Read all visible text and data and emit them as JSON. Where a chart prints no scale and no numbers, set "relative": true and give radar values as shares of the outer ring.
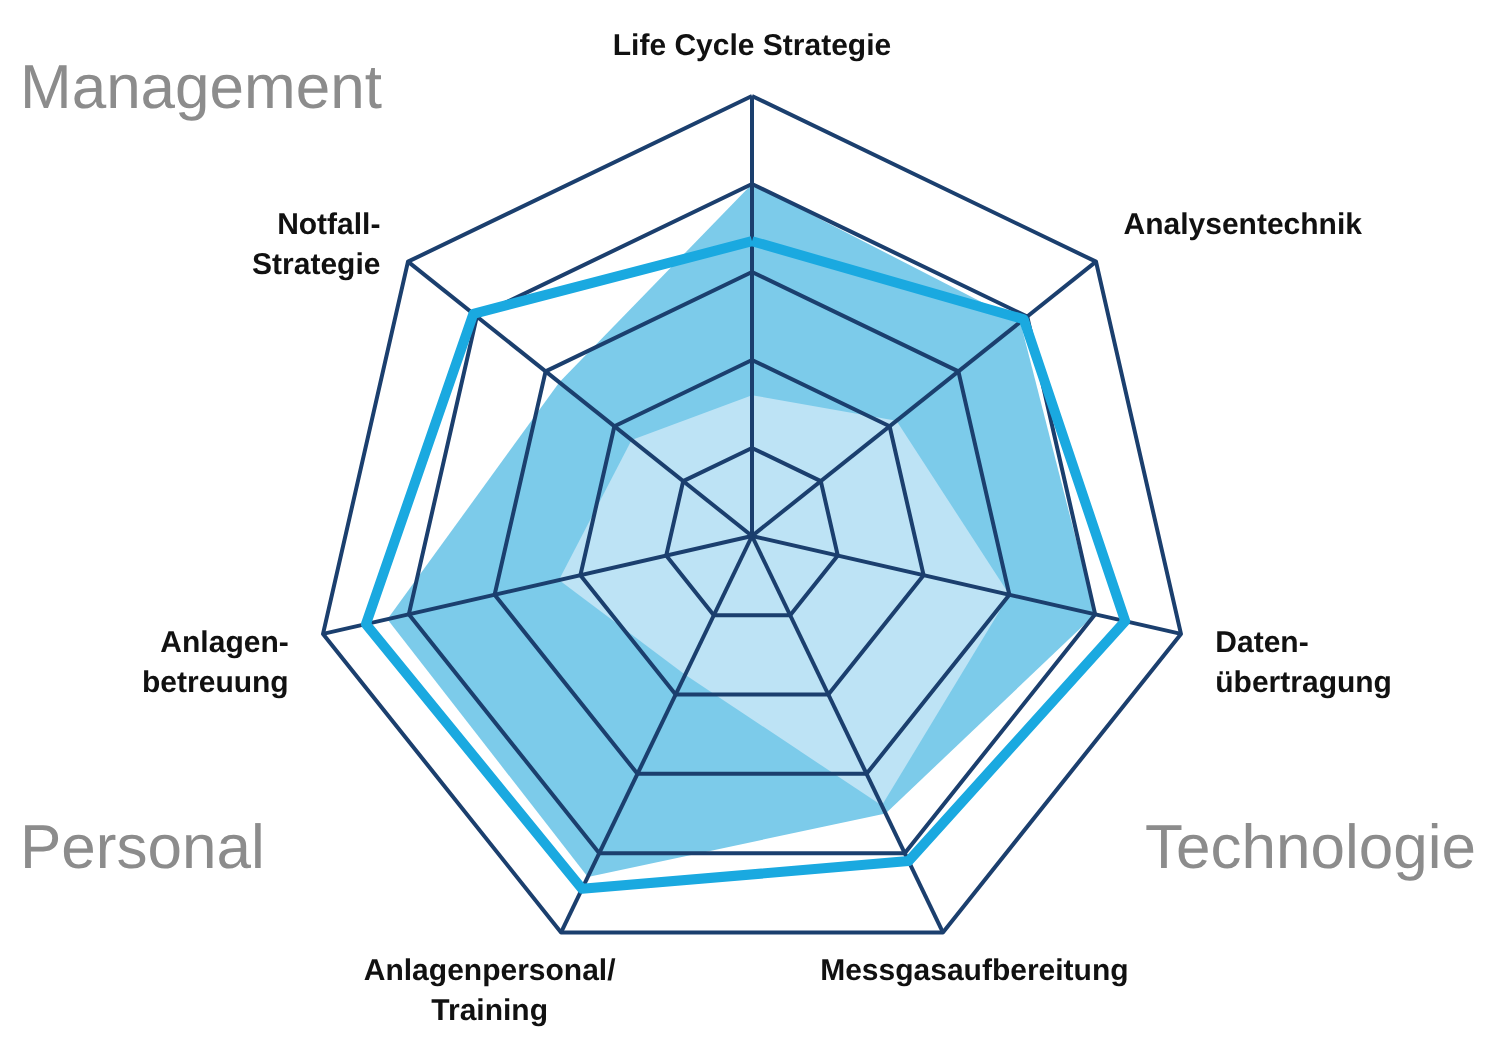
{
  "chart_data": {
    "type": "radar",
    "relative": true,
    "grid": true,
    "categories": [
      "Life Cycle Strategie",
      "Analysentechnik",
      "Daten-übertragung",
      "Messgasaufbereitung",
      "Anlagenpersonal/Training",
      "Anlagen-betreuung",
      "Notfall-Strategie"
    ],
    "series": [
      {
        "type": "area",
        "color": "#7ccbea",
        "values": [
          0.8,
          0.78,
          0.8,
          0.7,
          0.86,
          0.85,
          0.56
        ]
      },
      {
        "type": "area",
        "color": "#bde3f5",
        "values": [
          0.32,
          0.42,
          0.6,
          0.68,
          0.35,
          0.45,
          0.35
        ]
      },
      {
        "color": "#1aa9e0",
        "values": [
          0.67,
          0.79,
          0.87,
          0.82,
          0.89,
          0.9,
          0.81
        ]
      }
    ],
    "annotations": [
      "Management",
      "Personal",
      "Technologie"
    ]
  }
}
